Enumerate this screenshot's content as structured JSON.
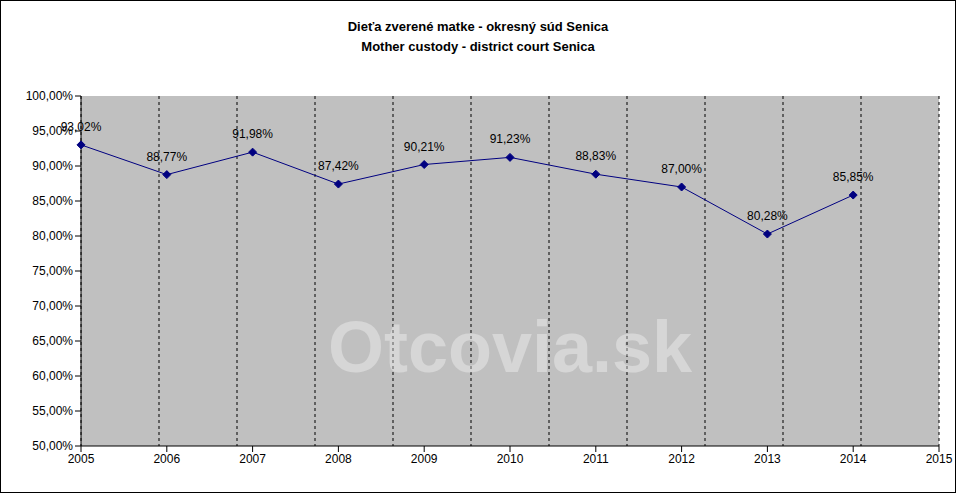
{
  "chart_data": {
    "type": "line",
    "title": "Dieťa zverené matke - okresný súd Senica",
    "subtitle": "Mother custody - district court Senica",
    "categories": [
      "2005",
      "2006",
      "2007",
      "2008",
      "2009",
      "2010",
      "2011",
      "2012",
      "2013",
      "2014",
      "2015"
    ],
    "values": [
      93.02,
      88.77,
      91.98,
      87.42,
      90.21,
      91.23,
      88.83,
      87.0,
      80.28,
      85.85,
      null
    ],
    "value_labels": [
      "93,02%",
      "88,77%",
      "91,98%",
      "87,42%",
      "90,21%",
      "91,23%",
      "88,83%",
      "87,00%",
      "80,28%",
      "85,85%",
      null
    ],
    "color": "#000080",
    "marker": "diamond",
    "line_style": "solid",
    "data_labels": true,
    "grid": true,
    "ylim": [
      50,
      100
    ],
    "yticks": [
      {
        "value": 50,
        "label": "50,00%"
      },
      {
        "value": 55,
        "label": "55,00%"
      },
      {
        "value": 60,
        "label": "60,00%"
      },
      {
        "value": 65,
        "label": "65,00%"
      },
      {
        "value": 70,
        "label": "70,00%"
      },
      {
        "value": 75,
        "label": "75,00%"
      },
      {
        "value": 80,
        "label": "80,00%"
      },
      {
        "value": 85,
        "label": "85,00%"
      },
      {
        "value": 90,
        "label": "90,00%"
      },
      {
        "value": 95,
        "label": "95,00%"
      },
      {
        "value": 100,
        "label": "100,00%"
      }
    ],
    "annotations": [
      "Otcovia.sk"
    ]
  }
}
